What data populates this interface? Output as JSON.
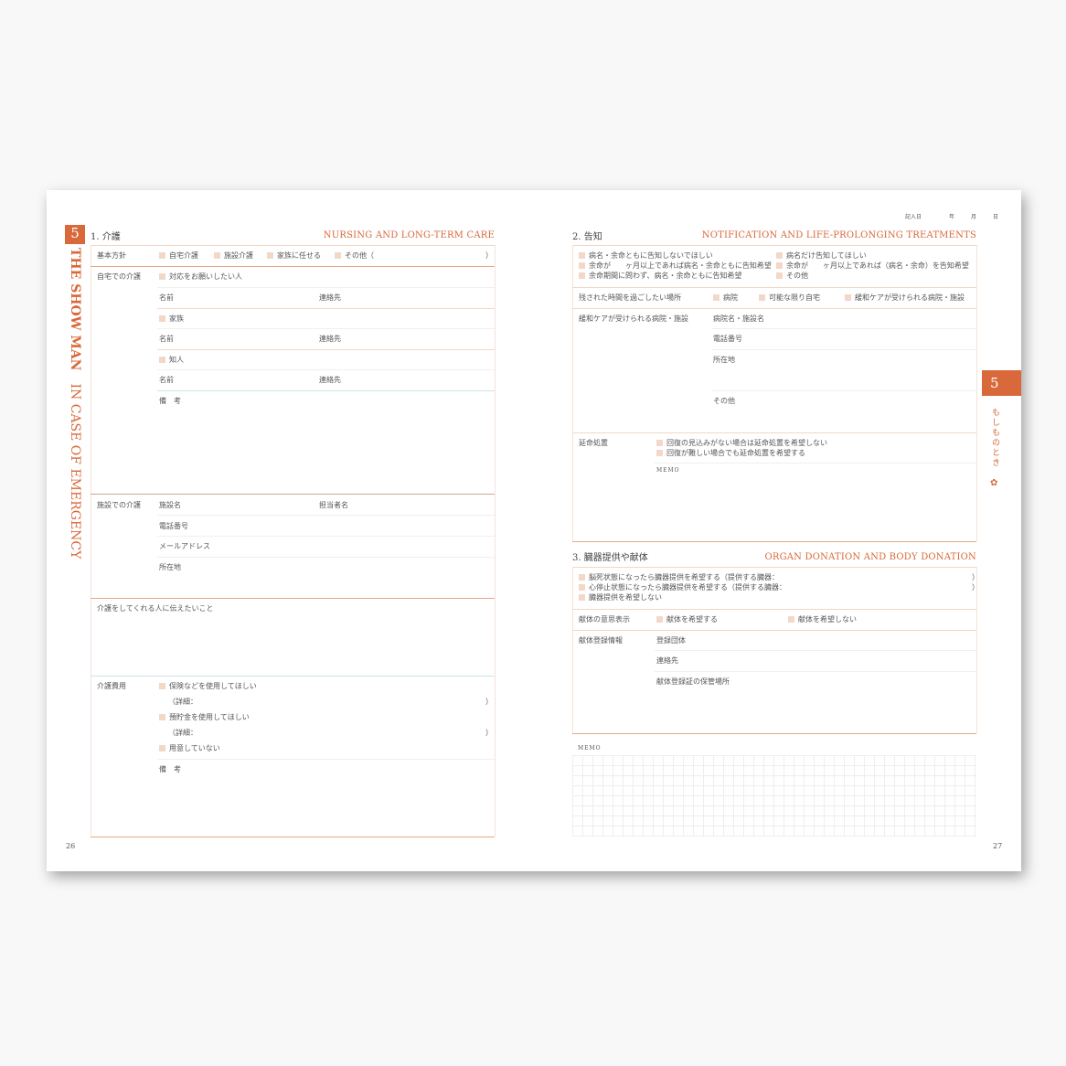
{
  "left": {
    "badge": "5",
    "side_title": "THE SHOW MAN",
    "side_sub": "IN CASE OF EMERGENCY",
    "page_number": "26",
    "section1": {
      "title": "1. 介護",
      "en_title": "NURSING AND LONG-TERM CARE",
      "basic_policy": {
        "label": "基本方針",
        "options": [
          "自宅介護",
          "施設介護",
          "家族に任せる",
          "その他（"
        ],
        "close": "）"
      },
      "home_care": {
        "label": "自宅での介護",
        "groups": [
          "対応をお願いしたい人",
          "家族",
          "知人"
        ],
        "name": "名前",
        "contact": "連絡先",
        "remarks": "備　考"
      },
      "facility_care": {
        "label": "施設での介護",
        "facility_name": "施設名",
        "person_in_charge": "担当者名",
        "phone": "電話番号",
        "email": "メールアドレス",
        "address": "所在地"
      },
      "message": {
        "label": "介護をしてくれる人に伝えたいこと"
      },
      "cost": {
        "label": "介護費用",
        "options": [
          "保険などを使用してほしい",
          "預貯金を使用してほしい",
          "用意していない"
        ],
        "detail": "（詳細：",
        "close": "）",
        "remarks": "備　考"
      }
    }
  },
  "right": {
    "date_label": "記入日",
    "year": "年",
    "month": "月",
    "day": "日",
    "page_number": "27",
    "tab_number": "5",
    "tab_label": "もしものとき",
    "section2": {
      "title": "2. 告知",
      "en_title": "NOTIFICATION AND LIFE-PROLONGING TREATMENTS",
      "notify_options": [
        "病名・余命ともに告知しないでほしい",
        "病名だけ告知してほしい",
        "余命が　　ヶ月以上であれば病名・余命ともに告知希望",
        "余命が　　ヶ月以上であれば（病名・余命）を告知希望",
        "余命期間に問わず、病名・余命ともに告知希望",
        "その他"
      ],
      "place": {
        "label": "残された時間を過ごしたい場所",
        "options": [
          "病院",
          "可能な限り自宅",
          "緩和ケアが受けられる病院・施設"
        ]
      },
      "palliative": {
        "label": "緩和ケアが受けられる病院・施設",
        "name": "病院名・施設名",
        "phone": "電話番号",
        "address": "所在地",
        "other": "その他"
      },
      "life_prolonging": {
        "label": "延命処置",
        "options": [
          "回復の見込みがない場合は延命処置を希望しない",
          "回復が難しい場合でも延命処置を希望する"
        ],
        "memo": "MEMO"
      }
    },
    "section3": {
      "title": "3. 臓器提供や献体",
      "en_title": "ORGAN DONATION AND BODY DONATION",
      "organ_options": [
        "脳死状態になったら臓器提供を希望する（提供する臓器：",
        "心停止状態になったら臓器提供を希望する（提供する臓器：",
        "臓器提供を希望しない"
      ],
      "close": "）",
      "intent": {
        "label": "献体の意思表示",
        "options": [
          "献体を希望する",
          "献体を希望しない"
        ]
      },
      "registration": {
        "label": "献体登録情報",
        "org": "登録団体",
        "contact": "連絡先",
        "storage": "献体登録証の保管場所"
      }
    },
    "memo_label": "MEMO"
  },
  "colors": {
    "accent": "#d9683a",
    "line": "#f3d6c4",
    "checkbox": "#f3d8c8"
  }
}
